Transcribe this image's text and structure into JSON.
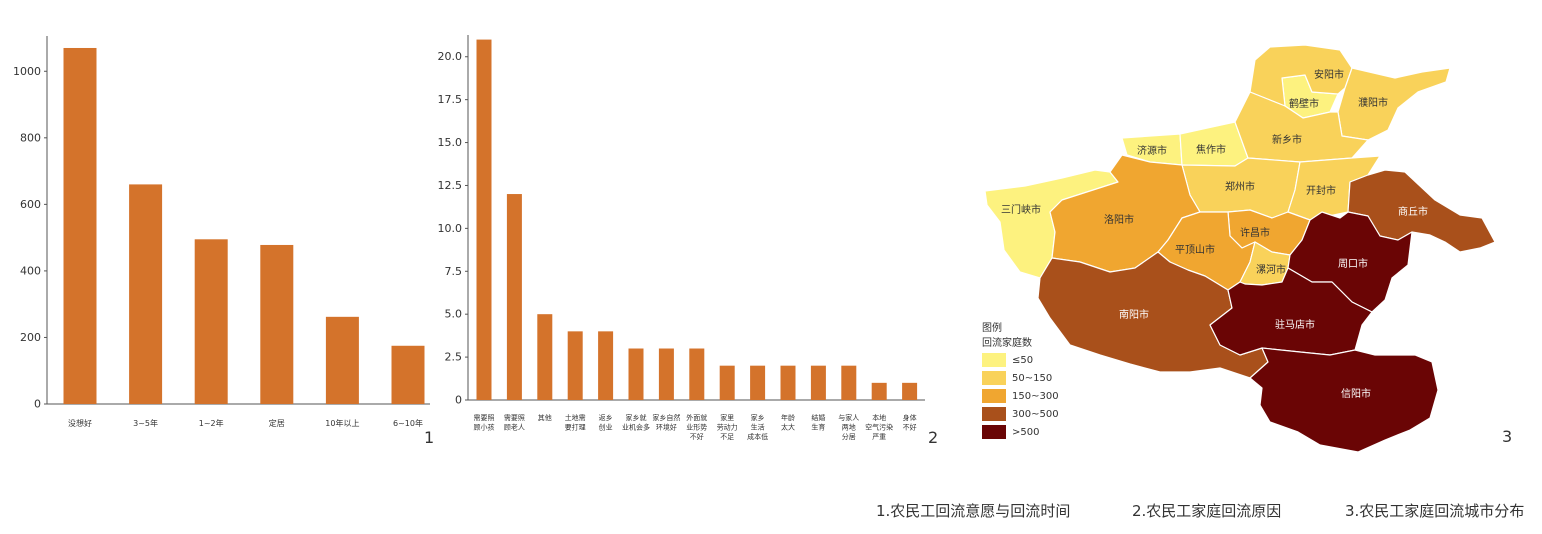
{
  "chart_data": [
    {
      "type": "bar",
      "categories": [
        "没想好",
        "3~5年",
        "1~2年",
        "定居",
        "10年以上",
        "6~10年"
      ],
      "values": [
        1070,
        660,
        495,
        478,
        262,
        175
      ],
      "ylim": [
        0,
        1100
      ],
      "yticks": [
        0,
        200,
        400,
        600,
        800,
        1000
      ],
      "color": "#d4732b",
      "grid": false
    },
    {
      "type": "bar",
      "categories": [
        [
          "需要照",
          "顾小孩"
        ],
        [
          "需要照",
          "顾老人"
        ],
        [
          "其他"
        ],
        [
          "土地需",
          "要打理"
        ],
        [
          "返乡",
          "创业"
        ],
        [
          "家乡就",
          "业机会多"
        ],
        [
          "家乡自然",
          "环境好"
        ],
        [
          "外面就",
          "业形势",
          "不好"
        ],
        [
          "家里",
          "劳动力",
          "不足"
        ],
        [
          "家乡",
          "生活",
          "成本低"
        ],
        [
          "年龄",
          "太大"
        ],
        [
          "结婚",
          "生育"
        ],
        [
          "与家人",
          "两地",
          "分居"
        ],
        [
          "本地",
          "空气污染",
          "严重"
        ],
        [
          "身体",
          "不好"
        ]
      ],
      "values": [
        21,
        12,
        5,
        4,
        4,
        3,
        3,
        3,
        2,
        2,
        2,
        2,
        2,
        1,
        1
      ],
      "ylim": [
        0,
        21.5
      ],
      "yticks": [
        "0",
        "2.5",
        "5.0",
        "7.5",
        "10.0",
        "12.5",
        "15.0",
        "17.5",
        "20.0"
      ],
      "color": "#d4732b",
      "grid": false
    },
    {
      "type": "choropleth",
      "legend": {
        "title": "图例",
        "subtitle": "回流家庭数",
        "items": [
          {
            "label": "≤50",
            "color": "#fdf27f"
          },
          {
            "label": "50~150",
            "color": "#f9d25a"
          },
          {
            "label": "150~300",
            "color": "#f0a630"
          },
          {
            "label": "300~500",
            "color": "#a9501b"
          },
          {
            "label": ">500",
            "color": "#6a0505"
          }
        ]
      },
      "regions": [
        {
          "name": "安阳市",
          "class": "50~150"
        },
        {
          "name": "鹤壁市",
          "class": "≤50"
        },
        {
          "name": "濮阳市",
          "class": "50~150"
        },
        {
          "name": "新乡市",
          "class": "50~150"
        },
        {
          "name": "济源市",
          "class": "≤50"
        },
        {
          "name": "焦作市",
          "class": "≤50"
        },
        {
          "name": "郑州市",
          "class": "50~150"
        },
        {
          "name": "开封市",
          "class": "50~150"
        },
        {
          "name": "商丘市",
          "class": "300~500"
        },
        {
          "name": "三门峡市",
          "class": "≤50"
        },
        {
          "name": "洛阳市",
          "class": "150~300"
        },
        {
          "name": "许昌市",
          "class": "150~300"
        },
        {
          "name": "平顶山市",
          "class": "150~300"
        },
        {
          "name": "漯河市",
          "class": "50~150"
        },
        {
          "name": "周口市",
          "class": ">500"
        },
        {
          "name": "南阳市",
          "class": "300~500"
        },
        {
          "name": "驻马店市",
          "class": ">500"
        },
        {
          "name": "信阳市",
          "class": ">500"
        }
      ]
    }
  ],
  "panel_numbers": [
    "1",
    "2",
    "3"
  ],
  "captions": [
    "1.农民工回流意愿与回流时间",
    "2.农民工家庭回流原因",
    "3.农民工家庭回流城市分布"
  ]
}
